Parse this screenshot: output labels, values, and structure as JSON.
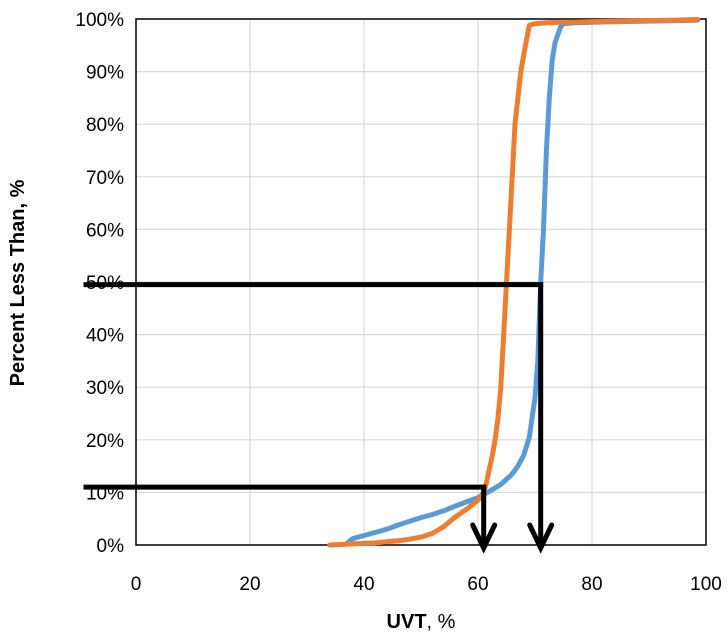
{
  "chart_data": {
    "type": "line",
    "title": "",
    "xlabel": "UVT",
    "xlabel_unit": ", %",
    "ylabel": "Percent Less Than, %",
    "xlim": [
      0,
      100
    ],
    "ylim": [
      0,
      100
    ],
    "x_ticks": [
      "0",
      "20",
      "40",
      "60",
      "80",
      "100"
    ],
    "y_ticks": [
      "0%",
      "10%",
      "20%",
      "30%",
      "40%",
      "50%",
      "60%",
      "70%",
      "80%",
      "90%",
      "100%"
    ],
    "grid": true,
    "legend": "none",
    "colors": {
      "blue": "#5b9bd5",
      "orange": "#ed7d31",
      "marker": "#000000",
      "grid": "#d9d9d9"
    },
    "series": [
      {
        "color": "#5b9bd5",
        "x": [
          37,
          38,
          40,
          42,
          44,
          46,
          48,
          50,
          52,
          54,
          56,
          58,
          60,
          62,
          64,
          66,
          67,
          68,
          69,
          70,
          70.5,
          71,
          71.5,
          72,
          72.5,
          73,
          73.5,
          74,
          74.5,
          75,
          77,
          80,
          85,
          90,
          95,
          98.5
        ],
        "y": [
          0.3,
          1.2,
          1.8,
          2.4,
          3,
          3.8,
          4.5,
          5.2,
          5.8,
          6.5,
          7.4,
          8.2,
          9,
          10.2,
          11.5,
          13.5,
          15,
          17,
          20.5,
          28,
          35,
          50,
          60,
          75,
          85,
          92,
          95.5,
          97,
          98.5,
          99.1,
          99.3,
          99.4,
          99.5,
          99.6,
          99.7,
          99.8
        ]
      },
      {
        "color": "#ed7d31",
        "x": [
          34,
          36,
          38,
          40,
          42,
          44,
          46,
          48,
          50,
          52,
          54,
          56,
          58,
          60,
          61,
          61.5,
          62,
          62.5,
          63,
          63.5,
          64,
          64.5,
          65,
          65.5,
          66,
          66.5,
          67,
          67.5,
          68,
          68.5,
          69,
          69.5,
          70,
          72,
          75,
          80,
          85,
          90,
          95,
          98.5
        ],
        "y": [
          0,
          0.1,
          0.2,
          0.3,
          0.4,
          0.6,
          0.8,
          1.1,
          1.5,
          2.2,
          3.5,
          5.3,
          6.8,
          8.5,
          10,
          12,
          14.5,
          17,
          20,
          24,
          30,
          40,
          50,
          60,
          70,
          80,
          85,
          90,
          93,
          96,
          98.8,
          99,
          99.1,
          99.3,
          99.4,
          99.5,
          99.6,
          99.7,
          99.8,
          99.9
        ]
      }
    ],
    "annotations": [
      {
        "kind": "read-line",
        "y": 11,
        "x_from": 0,
        "x_to": 61
      },
      {
        "kind": "read-line",
        "y": 49.5,
        "x_from": 0,
        "x_to": 71
      }
    ]
  }
}
